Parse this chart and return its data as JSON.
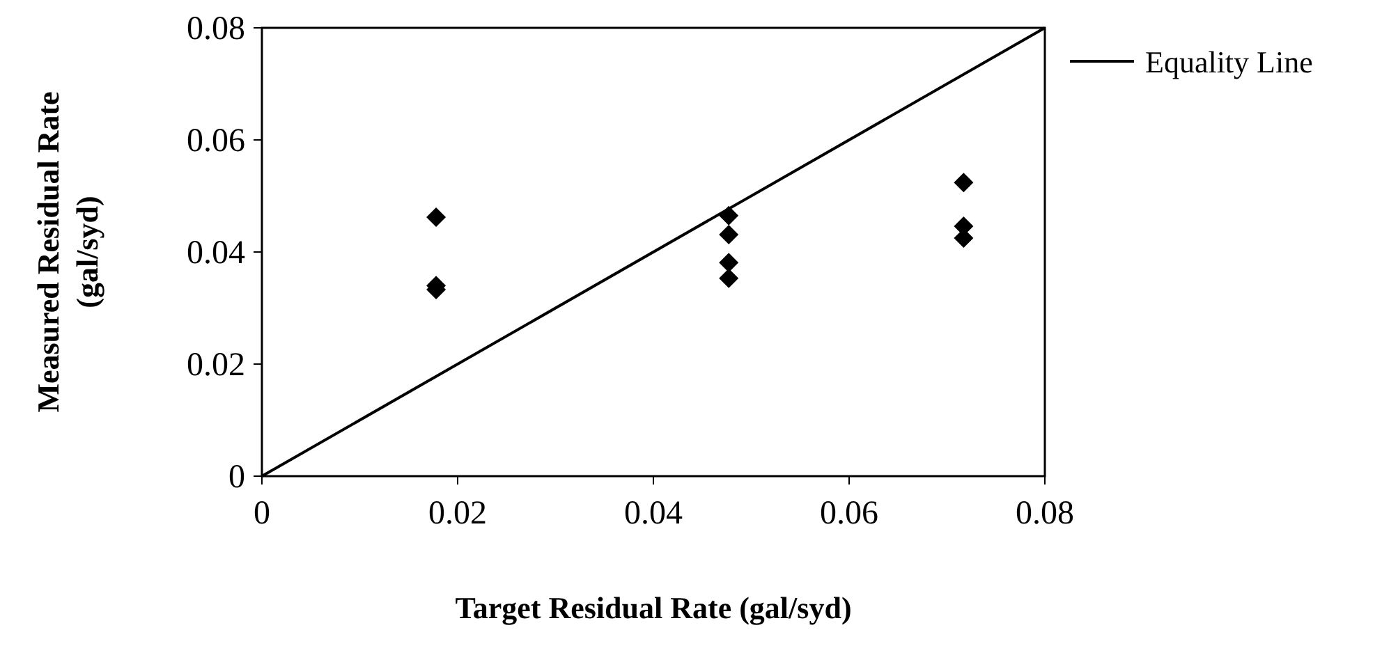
{
  "chart_data": {
    "type": "scatter",
    "xlabel": "Target Residual Rate (gal/syd)",
    "ylabel": "Measured Residual Rate (gal/syd)",
    "xlim": [
      0,
      0.08
    ],
    "ylim": [
      0,
      0.08
    ],
    "xticks": [
      0,
      0.02,
      0.04,
      0.06,
      0.08
    ],
    "yticks": [
      0,
      0.02,
      0.04,
      0.06,
      0.08
    ],
    "grid": false,
    "legend": "top right",
    "marker": "diamond",
    "series": [
      {
        "color": "#000000",
        "x": [
          0.0178,
          0.0178,
          0.0178,
          0.0477,
          0.0477,
          0.0477,
          0.0477,
          0.0717,
          0.0717,
          0.0717
        ],
        "values": [
          0.0462,
          0.034,
          0.0333,
          0.0465,
          0.0431,
          0.0381,
          0.0353,
          0.0524,
          0.0446,
          0.0425
        ]
      },
      {
        "type": "line",
        "name": "Equality Line",
        "color": "#000000",
        "x": [
          0,
          0.08
        ],
        "values": [
          0,
          0.08
        ],
        "marker": "none",
        "line_style": "solid"
      }
    ]
  }
}
